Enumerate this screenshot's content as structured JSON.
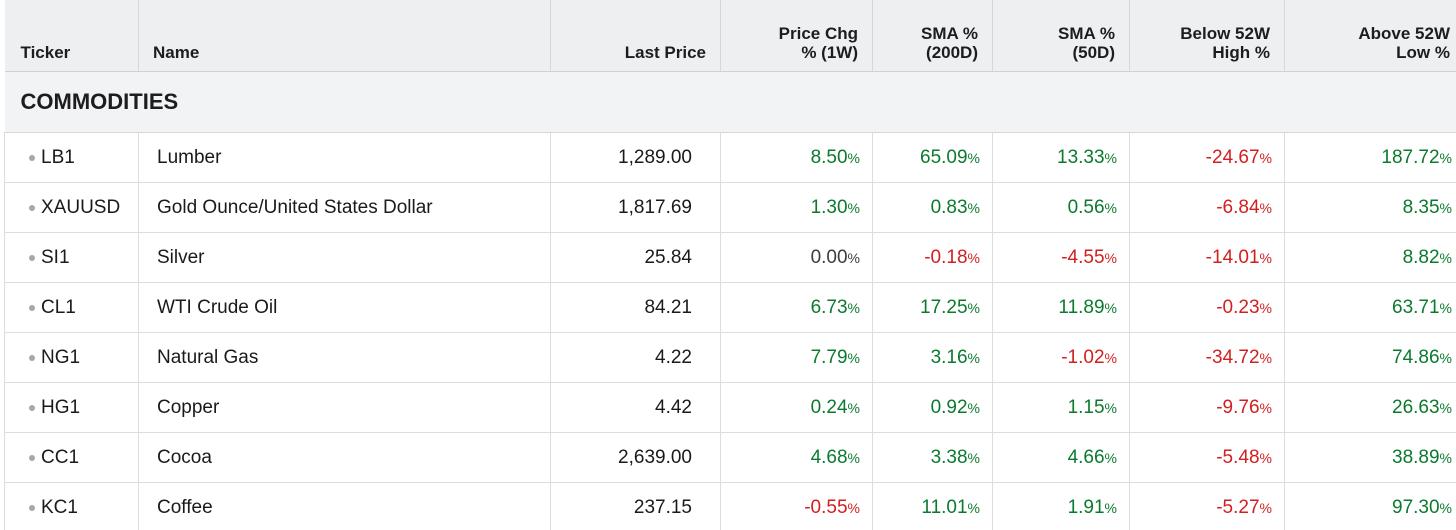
{
  "headers": {
    "ticker": "Ticker",
    "name": "Name",
    "last_price": "Last Price",
    "price_chg_line1": "Price Chg",
    "price_chg_line2": "% (1W)",
    "sma200_line1": "SMA %",
    "sma200_line2": "(200D)",
    "sma50_line1": "SMA %",
    "sma50_line2": "(50D)",
    "below52_line1": "Below 52W",
    "below52_line2": "High %",
    "above52_line1": "Above 52W",
    "above52_line2": "Low %"
  },
  "section": {
    "title": "COMMODITIES"
  },
  "percent_sign": "%",
  "colors": {
    "positive": "#0c7a2e",
    "negative": "#d21f1f",
    "neutral": "#3c3c3c"
  },
  "rows": [
    {
      "ticker": "LB1",
      "name": "Lumber",
      "last": "1,289.00",
      "chg": "8.50",
      "chg_dir": "pos",
      "sma200": "65.09",
      "sma200_dir": "pos",
      "sma50": "13.33",
      "sma50_dir": "pos",
      "below52": "-24.67",
      "below52_dir": "neg",
      "above52": "187.72",
      "above52_dir": "pos"
    },
    {
      "ticker": "XAUUSD",
      "name": "Gold Ounce/United States Dollar",
      "last": "1,817.69",
      "chg": "1.30",
      "chg_dir": "pos",
      "sma200": "0.83",
      "sma200_dir": "pos",
      "sma50": "0.56",
      "sma50_dir": "pos",
      "below52": "-6.84",
      "below52_dir": "neg",
      "above52": "8.35",
      "above52_dir": "pos"
    },
    {
      "ticker": "SI1",
      "name": "Silver",
      "last": "25.84",
      "chg": "0.00",
      "chg_dir": "zero",
      "sma200": "-0.18",
      "sma200_dir": "neg",
      "sma50": "-4.55",
      "sma50_dir": "neg",
      "below52": "-14.01",
      "below52_dir": "neg",
      "above52": "8.82",
      "above52_dir": "pos"
    },
    {
      "ticker": "CL1",
      "name": "WTI Crude Oil",
      "last": "84.21",
      "chg": "6.73",
      "chg_dir": "pos",
      "sma200": "17.25",
      "sma200_dir": "pos",
      "sma50": "11.89",
      "sma50_dir": "pos",
      "below52": "-0.23",
      "below52_dir": "neg",
      "above52": "63.71",
      "above52_dir": "pos"
    },
    {
      "ticker": "NG1",
      "name": "Natural Gas",
      "last": "4.22",
      "chg": "7.79",
      "chg_dir": "pos",
      "sma200": "3.16",
      "sma200_dir": "pos",
      "sma50": "-1.02",
      "sma50_dir": "neg",
      "below52": "-34.72",
      "below52_dir": "neg",
      "above52": "74.86",
      "above52_dir": "pos"
    },
    {
      "ticker": "HG1",
      "name": "Copper",
      "last": "4.42",
      "chg": "0.24",
      "chg_dir": "pos",
      "sma200": "0.92",
      "sma200_dir": "pos",
      "sma50": "1.15",
      "sma50_dir": "pos",
      "below52": "-9.76",
      "below52_dir": "neg",
      "above52": "26.63",
      "above52_dir": "pos"
    },
    {
      "ticker": "CC1",
      "name": "Cocoa",
      "last": "2,639.00",
      "chg": "4.68",
      "chg_dir": "pos",
      "sma200": "3.38",
      "sma200_dir": "pos",
      "sma50": "4.66",
      "sma50_dir": "pos",
      "below52": "-5.48",
      "below52_dir": "neg",
      "above52": "38.89",
      "above52_dir": "pos"
    },
    {
      "ticker": "KC1",
      "name": "Coffee",
      "last": "237.15",
      "chg": "-0.55",
      "chg_dir": "neg",
      "sma200": "11.01",
      "sma200_dir": "pos",
      "sma50": "1.91",
      "sma50_dir": "pos",
      "below52": "-5.27",
      "below52_dir": "neg",
      "above52": "97.30",
      "above52_dir": "pos"
    }
  ]
}
